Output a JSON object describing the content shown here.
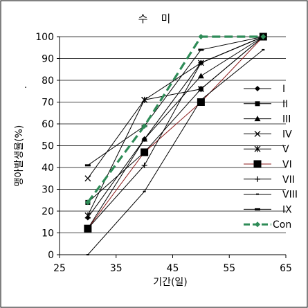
{
  "chart_data": {
    "type": "line",
    "title": "수    미",
    "xlabel": "기간(일)",
    "ylabel": "맹아발생율(%)",
    "xlim": [
      25,
      65
    ],
    "ylim": [
      0,
      100
    ],
    "x_ticks": [
      "25",
      "35",
      "45",
      "55",
      "65"
    ],
    "y_ticks": [
      "0",
      "10",
      "20",
      "30",
      "40",
      "50",
      "60",
      "70",
      "80",
      "90",
      "100"
    ],
    "grid": "horizontal",
    "legend_position": "right",
    "stray_mark": ".",
    "series": [
      {
        "name": "I",
        "marker": "diamond",
        "color": "#000000",
        "x": [
          30,
          40,
          50,
          61
        ],
        "y": [
          17,
          53,
          88,
          100
        ]
      },
      {
        "name": "II",
        "marker": "square",
        "color": "#000000",
        "x": [
          30,
          40,
          50,
          61
        ],
        "y": [
          24,
          47,
          76,
          100
        ]
      },
      {
        "name": "III",
        "marker": "triangle",
        "color": "#000000",
        "x": [
          30,
          40,
          50,
          61
        ],
        "y": [
          12,
          53,
          82,
          100
        ]
      },
      {
        "name": "IV",
        "marker": "x",
        "color": "#000000",
        "x": [
          30,
          40,
          50,
          61
        ],
        "y": [
          35,
          71,
          88,
          100
        ]
      },
      {
        "name": "V",
        "marker": "star",
        "color": "#000000",
        "x": [
          30,
          40,
          50,
          61
        ],
        "y": [
          18,
          71,
          76,
          100
        ]
      },
      {
        "name": "VI",
        "marker": "bigsquare",
        "color": "#8B1A1A",
        "x": [
          30,
          40,
          50,
          61
        ],
        "y": [
          12,
          47,
          70,
          100
        ]
      },
      {
        "name": "VII",
        "marker": "plus",
        "color": "#000000",
        "x": [
          30,
          40,
          50,
          61
        ],
        "y": [
          12,
          41,
          88,
          100
        ]
      },
      {
        "name": "VIII",
        "marker": "dash",
        "color": "#000000",
        "x": [
          30,
          40,
          50,
          61
        ],
        "y": [
          0,
          29,
          71,
          94
        ]
      },
      {
        "name": "IX",
        "marker": "bar",
        "color": "#000000",
        "x": [
          30,
          40,
          50,
          61
        ],
        "y": [
          41,
          59,
          94,
          100
        ]
      },
      {
        "name": "Con",
        "marker": "diamond",
        "color": "#2E8B57",
        "dashed": true,
        "x": [
          30,
          40,
          50,
          61
        ],
        "y": [
          24,
          59,
          100,
          100
        ]
      }
    ]
  }
}
